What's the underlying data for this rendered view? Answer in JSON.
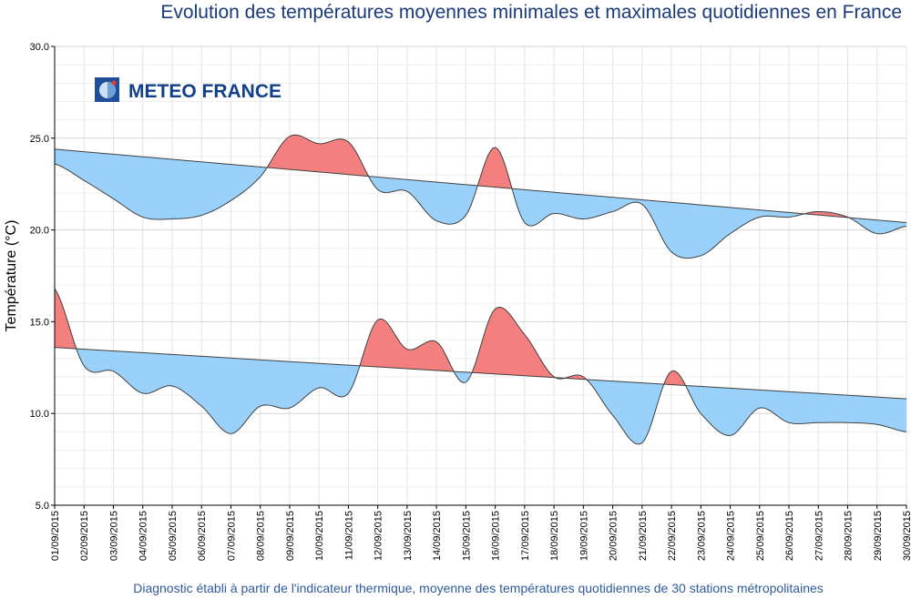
{
  "title": "Evolution des températures moyennes minimales et maximales quotidiennes en France",
  "footer": "Diagnostic établi à partir de l'indicateur thermique, moyenne des températures quotidiennes de 30 stations métropolitaines",
  "logo": {
    "text": "METEO FRANCE",
    "icon": "meteo-france-globe-icon"
  },
  "colors": {
    "above": "#f47f7f",
    "below": "#99d1fb",
    "line": "#404040",
    "title": "#1a3a7a",
    "footer": "#2e5a9c"
  },
  "chart_data": {
    "type": "area",
    "ylabel": "Température (°C)",
    "xlabel": "",
    "ylim": [
      5.0,
      30.0
    ],
    "yticks": [
      "5.0",
      "10.0",
      "15.0",
      "20.0",
      "25.0",
      "30.0"
    ],
    "categories": [
      "01/09/2015",
      "02/09/2015",
      "03/09/2015",
      "04/09/2015",
      "05/09/2015",
      "06/09/2015",
      "07/09/2015",
      "08/09/2015",
      "09/09/2015",
      "10/09/2015",
      "11/09/2015",
      "12/09/2015",
      "13/09/2015",
      "14/09/2015",
      "15/09/2015",
      "16/09/2015",
      "17/09/2015",
      "18/09/2015",
      "19/09/2015",
      "20/09/2015",
      "21/09/2015",
      "22/09/2015",
      "23/09/2015",
      "24/09/2015",
      "25/09/2015",
      "26/09/2015",
      "27/09/2015",
      "28/09/2015",
      "29/09/2015",
      "30/09/2015"
    ],
    "grid": true,
    "series": [
      {
        "values": [
          23.6,
          22.7,
          21.7,
          20.7,
          20.6,
          20.8,
          21.6,
          22.9,
          25.1,
          24.7,
          24.8,
          22.2,
          22.1,
          20.5,
          20.8,
          24.5,
          20.4,
          20.9,
          20.6,
          21.0,
          21.4,
          18.8,
          18.6,
          19.8,
          20.7,
          20.7,
          21.0,
          20.7,
          19.8,
          20.2
        ],
        "normal": [
          24.4,
          20.4
        ]
      },
      {
        "values": [
          16.8,
          12.6,
          12.3,
          11.1,
          11.5,
          10.4,
          8.9,
          10.4,
          10.3,
          11.4,
          11.1,
          15.1,
          13.5,
          13.9,
          11.7,
          15.7,
          14.3,
          12.0,
          12.0,
          9.9,
          8.4,
          12.3,
          10.0,
          8.8,
          10.3,
          9.5,
          9.5,
          9.5,
          9.4,
          9.0
        ],
        "normal": [
          13.6,
          10.8
        ]
      }
    ]
  }
}
